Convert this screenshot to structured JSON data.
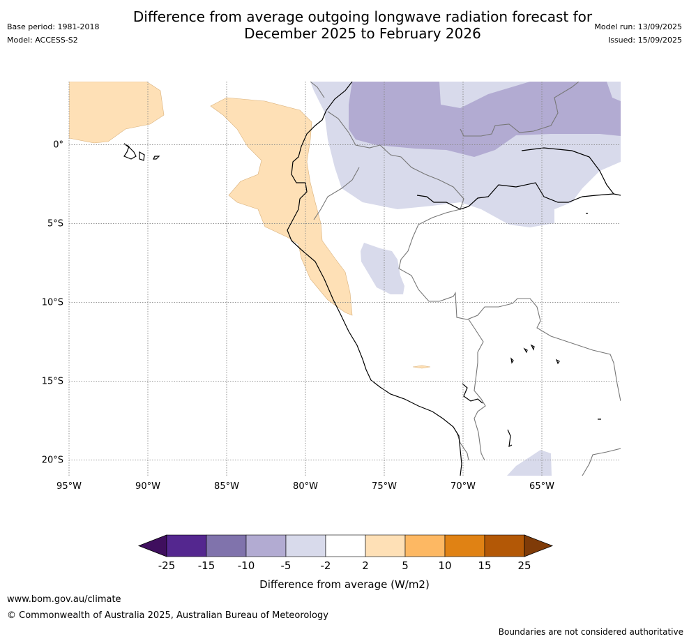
{
  "header": {
    "title_line1": "Difference from average outgoing longwave radiation forecast for",
    "title_line2": "December 2025 to February 2026",
    "base_period": "Base period: 1981-2018",
    "model": "Model: ACCESS-S2",
    "model_run": "Model run: 13/09/2025",
    "issued": "Issued: 15/09/2025"
  },
  "map": {
    "lat_labels": [
      "0°",
      "5°S",
      "10°S",
      "15°S",
      "20°S"
    ],
    "lon_labels": [
      "95°W",
      "90°W",
      "85°W",
      "80°W",
      "75°W",
      "70°W",
      "65°W"
    ],
    "grid": true,
    "extent": {
      "lon": [
        -95,
        -60
      ],
      "lat": [
        -21,
        4
      ]
    }
  },
  "colorbar": {
    "ticks": [
      "-25",
      "-15",
      "-10",
      "-5",
      "-2",
      "2",
      "5",
      "10",
      "15",
      "25"
    ],
    "colors": [
      "#3f0f5e",
      "#54278f",
      "#8073ac",
      "#b2abd2",
      "#d8daeb",
      "#ffffff",
      "#fee0b6",
      "#fdb863",
      "#e08214",
      "#b35806",
      "#7f3b08"
    ],
    "label": "Difference from average (W/m2)"
  },
  "footer": {
    "url": "www.bom.gov.au/climate",
    "copyright": "© Commonwealth of Australia 2025, Australian Bureau of Meteorology",
    "note": "Boundaries are not considered authoritative"
  }
}
